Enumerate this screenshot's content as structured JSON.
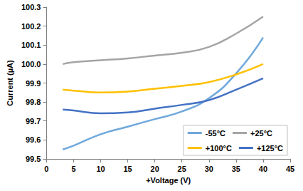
{
  "chart_data": {
    "type": "line",
    "x_label": "+Voltage (V)",
    "y_label": "Current (µA)",
    "x": [
      3,
      5,
      10,
      15,
      20,
      25,
      30,
      35,
      40
    ],
    "series": [
      {
        "name": "-55°C",
        "color": "#6fa8dc",
        "values": [
          99.55,
          99.57,
          99.63,
          99.67,
          99.71,
          99.75,
          99.82,
          99.95,
          100.14
        ]
      },
      {
        "name": "+25°C",
        "color": "#a5a5a5",
        "values": [
          100.0,
          100.01,
          100.02,
          100.03,
          100.045,
          100.06,
          100.09,
          100.16,
          100.25
        ]
      },
      {
        "name": "+100°C",
        "color": "#ffc000",
        "values": [
          99.865,
          99.86,
          99.85,
          99.855,
          99.87,
          99.885,
          99.905,
          99.945,
          100.0
        ]
      },
      {
        "name": "+125°C",
        "color": "#4472c4",
        "values": [
          99.76,
          99.755,
          99.74,
          99.745,
          99.765,
          99.785,
          99.81,
          99.865,
          99.925
        ]
      }
    ],
    "xlim": [
      0,
      45
    ],
    "xticks": [
      0,
      5,
      10,
      15,
      20,
      25,
      30,
      35,
      40,
      45
    ],
    "ylim": [
      99.5,
      100.3
    ],
    "yticks": [
      99.5,
      99.6,
      99.7,
      99.8,
      99.9,
      {
        "value": 100,
        "label": "100.0"
      },
      100.1,
      100.2,
      100.3
    ],
    "grid": false,
    "legend": "lower right"
  }
}
